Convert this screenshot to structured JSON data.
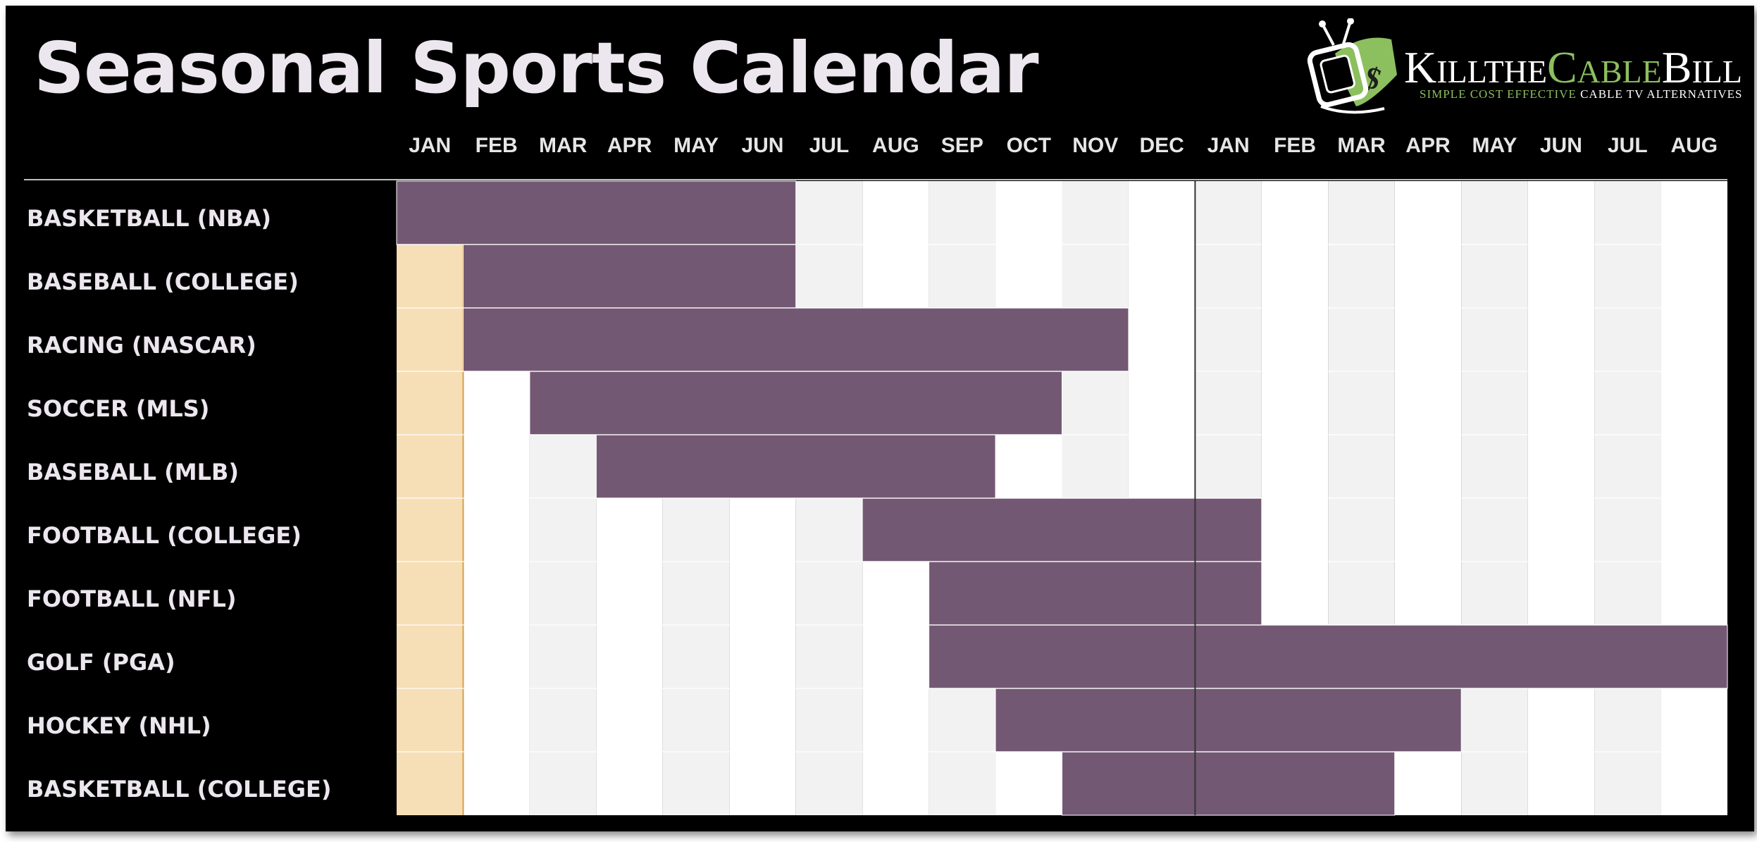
{
  "title": "Seasonal Sports Calendar",
  "logo": {
    "name_parts": [
      "K",
      "ILL",
      "THE",
      "C",
      "ABLE",
      "B",
      "ILL"
    ],
    "tagline_green": "SIMPLE COST EFFECTIVE ",
    "tagline_white": "CABLE TV ALTERNATIVES",
    "icon": "tv-with-money-icon"
  },
  "colors": {
    "background": "#000000",
    "bar": "#735873",
    "current_month_highlight": "#f6deb6",
    "current_month_border": "#d4a04a",
    "column_light": "#f2f2f2",
    "column_white": "#ffffff",
    "year_divider": "#333333",
    "logo_green": "#8cbf5e"
  },
  "chart_data": {
    "type": "gantt",
    "title": "Seasonal Sports Calendar",
    "months": [
      "JAN",
      "FEB",
      "MAR",
      "APR",
      "MAY",
      "JUN",
      "JUL",
      "AUG",
      "SEP",
      "OCT",
      "NOV",
      "DEC",
      "JAN",
      "FEB",
      "MAR",
      "APR",
      "MAY",
      "JUN",
      "JUL",
      "AUG"
    ],
    "current_month_index": 0,
    "year_divider_after_month_index": 11,
    "grid_shading": "alternating columns",
    "series": [
      {
        "name": "BASKETBALL (NBA)",
        "start_month_index": 0,
        "end_month_index": 5
      },
      {
        "name": "BASEBALL (COLLEGE)",
        "start_month_index": 1,
        "end_month_index": 5
      },
      {
        "name": "RACING (NASCAR)",
        "start_month_index": 1,
        "end_month_index": 10
      },
      {
        "name": "SOCCER (MLS)",
        "start_month_index": 2,
        "end_month_index": 9
      },
      {
        "name": "BASEBALL (MLB)",
        "start_month_index": 3,
        "end_month_index": 8
      },
      {
        "name": "FOOTBALL (COLLEGE)",
        "start_month_index": 7,
        "end_month_index": 12
      },
      {
        "name": "FOOTBALL (NFL)",
        "start_month_index": 8,
        "end_month_index": 12
      },
      {
        "name": "GOLF (PGA)",
        "start_month_index": 8,
        "end_month_index": 19
      },
      {
        "name": "HOCKEY (NHL)",
        "start_month_index": 9,
        "end_month_index": 15
      },
      {
        "name": "BASKETBALL (COLLEGE)",
        "start_month_index": 10,
        "end_month_index": 14
      }
    ]
  }
}
